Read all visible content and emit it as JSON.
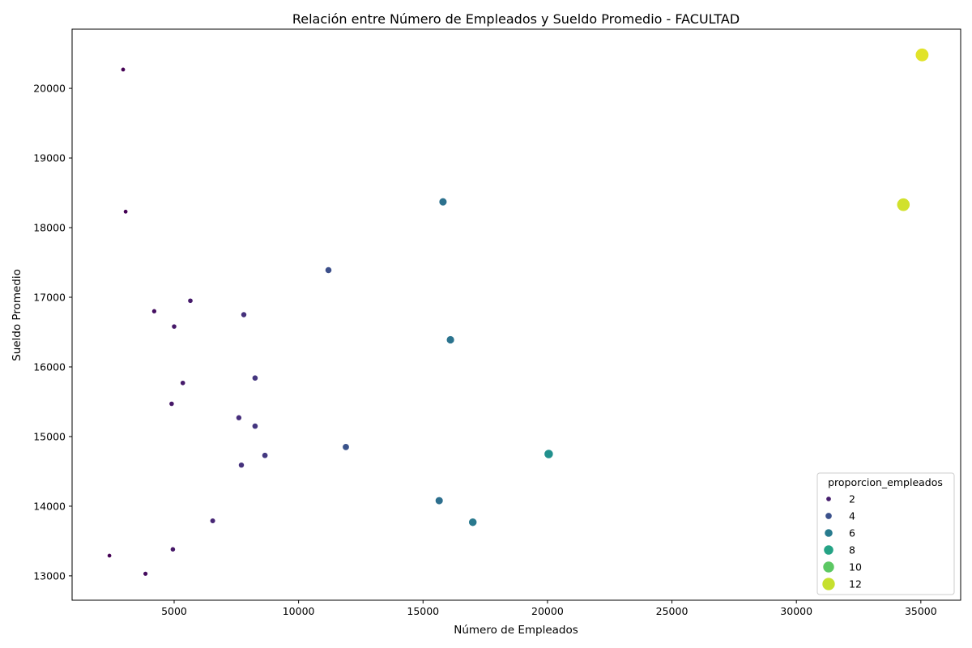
{
  "chart_data": {
    "type": "scatter",
    "title": "Relación entre Número de Empleados y Sueldo Promedio - FACULTAD",
    "xlabel": "Número de Empleados",
    "ylabel": "Sueldo Promedio",
    "xlim": [
      900,
      36600
    ],
    "ylim": [
      12650,
      20850
    ],
    "xticks": [
      5000,
      10000,
      15000,
      20000,
      25000,
      30000,
      35000
    ],
    "yticks": [
      13000,
      14000,
      15000,
      16000,
      17000,
      18000,
      19000,
      20000
    ],
    "grid": false,
    "colormap": "viridis",
    "hue_range": [
      1,
      13
    ],
    "legend": {
      "title": "proporcion_empleados",
      "placement": "lower right",
      "entries": [
        {
          "label": "2",
          "value": 2
        },
        {
          "label": "4",
          "value": 4
        },
        {
          "label": "6",
          "value": 6
        },
        {
          "label": "8",
          "value": 8
        },
        {
          "label": "10",
          "value": 10
        },
        {
          "label": "12",
          "value": 12
        }
      ]
    },
    "points": [
      {
        "x": 2950,
        "y": 20270,
        "p": 1.0
      },
      {
        "x": 3050,
        "y": 18230,
        "p": 1.0
      },
      {
        "x": 2400,
        "y": 13290,
        "p": 0.9
      },
      {
        "x": 3850,
        "y": 13030,
        "p": 1.4
      },
      {
        "x": 4200,
        "y": 16800,
        "p": 1.5
      },
      {
        "x": 5650,
        "y": 16950,
        "p": 1.9
      },
      {
        "x": 5000,
        "y": 16580,
        "p": 1.8
      },
      {
        "x": 5350,
        "y": 15770,
        "p": 1.9
      },
      {
        "x": 4900,
        "y": 15470,
        "p": 1.8
      },
      {
        "x": 4950,
        "y": 13380,
        "p": 1.8
      },
      {
        "x": 6550,
        "y": 13790,
        "p": 2.3
      },
      {
        "x": 7800,
        "y": 16750,
        "p": 2.7
      },
      {
        "x": 8250,
        "y": 15840,
        "p": 2.9
      },
      {
        "x": 7600,
        "y": 15270,
        "p": 2.6
      },
      {
        "x": 8250,
        "y": 15150,
        "p": 2.9
      },
      {
        "x": 8650,
        "y": 14730,
        "p": 3.0
      },
      {
        "x": 7700,
        "y": 14590,
        "p": 2.7
      },
      {
        "x": 11200,
        "y": 17390,
        "p": 3.9
      },
      {
        "x": 11900,
        "y": 14850,
        "p": 4.1
      },
      {
        "x": 15800,
        "y": 18370,
        "p": 5.5
      },
      {
        "x": 16100,
        "y": 16390,
        "p": 5.6
      },
      {
        "x": 15650,
        "y": 14080,
        "p": 5.4
      },
      {
        "x": 17000,
        "y": 13770,
        "p": 5.9
      },
      {
        "x": 20050,
        "y": 14750,
        "p": 7.0
      },
      {
        "x": 35050,
        "y": 20480,
        "p": 12.5
      },
      {
        "x": 34300,
        "y": 18330,
        "p": 12.2
      }
    ]
  }
}
